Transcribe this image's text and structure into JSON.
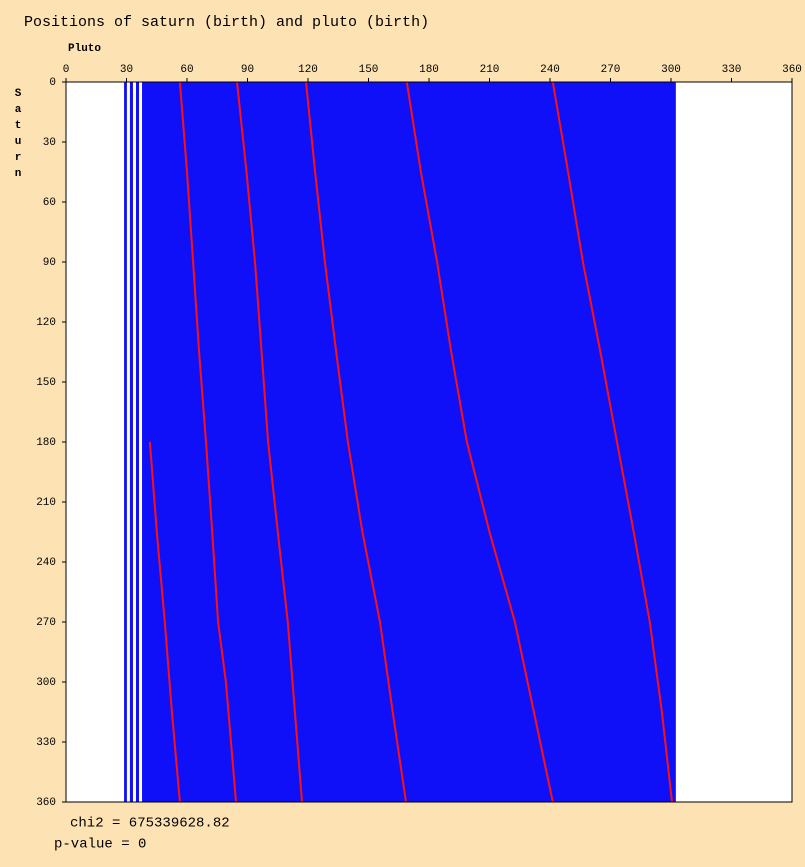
{
  "chart_data": {
    "type": "scatter",
    "title": "Positions of saturn (birth) and pluto (birth)",
    "x_label": "Pluto",
    "y_label": "Saturn",
    "xlim": [
      0,
      360
    ],
    "ylim": [
      0,
      360
    ],
    "y_inverted": true,
    "xticks": [
      0,
      30,
      60,
      90,
      120,
      150,
      180,
      210,
      240,
      270,
      300,
      330,
      360
    ],
    "yticks": [
      0,
      30,
      60,
      90,
      120,
      150,
      180,
      210,
      240,
      270,
      300,
      330,
      360
    ],
    "bands": {
      "color": "#1010f8",
      "x": [
        [
          28.8,
          30.2
        ],
        [
          31.7,
          33.2
        ],
        [
          34.7,
          36.2
        ],
        [
          37.7,
          302.4
        ]
      ]
    },
    "series": [
      {
        "color": "#ff1010",
        "x": [
          41.6,
          45,
          49,
          52.5,
          56.5
        ],
        "y": [
          180,
          225,
          270,
          315,
          360
        ]
      },
      {
        "color": "#ff1010",
        "x": [
          56.5,
          60,
          63,
          66,
          69.4,
          72.5,
          75.4,
          79.3,
          81.8,
          84.3
        ],
        "y": [
          0,
          45,
          90,
          135,
          180,
          225,
          270,
          300,
          330,
          360
        ]
      },
      {
        "color": "#ff1010",
        "x": [
          84.8,
          89.5,
          93.7,
          97,
          100.2,
          105,
          110,
          113.5,
          117
        ],
        "y": [
          0,
          45,
          90,
          135,
          180,
          225,
          270,
          315,
          360
        ]
      },
      {
        "color": "#ff1010",
        "x": [
          119,
          123.5,
          128.4,
          134,
          139.8,
          147,
          155.7,
          162,
          168.6
        ],
        "y": [
          0,
          45,
          90,
          135,
          180,
          225,
          270,
          315,
          360
        ]
      },
      {
        "color": "#ff1010",
        "x": [
          169,
          176,
          184,
          191,
          198.8,
          210,
          222.6,
          232,
          241.4
        ],
        "y": [
          0,
          45,
          90,
          135,
          180,
          225,
          270,
          315,
          360
        ]
      },
      {
        "color": "#ff1010",
        "x": [
          241.4,
          249,
          256.3,
          265,
          273.2,
          281.5,
          289.5,
          295.5,
          300.5
        ],
        "y": [
          0,
          45,
          90,
          135,
          180,
          225,
          270,
          315,
          360
        ]
      }
    ],
    "footer": [
      "chi2 = 675339628.82",
      "p-value = 0"
    ]
  }
}
